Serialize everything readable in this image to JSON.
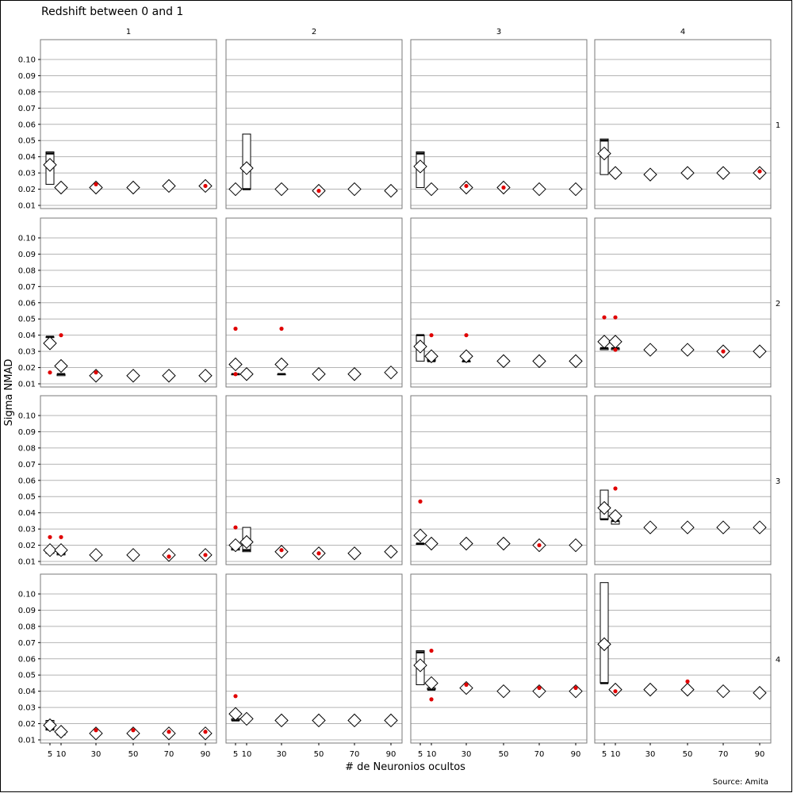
{
  "chart_data": {
    "type": "boxplot",
    "title": "Redshift between 0 and 1",
    "xlabel": "# de Neuronios ocultos",
    "ylabel": "Sigma NMAD",
    "source": "Source: Amita",
    "column_labels": [
      "1",
      "2",
      "3",
      "4"
    ],
    "row_labels": [
      "1",
      "2",
      "3",
      "4"
    ],
    "x_categories": [
      5,
      10,
      30,
      50,
      70,
      90
    ],
    "x_tick_labels": [
      "5",
      "10",
      "30",
      "50",
      "70",
      "90"
    ],
    "ylim": [
      0.005,
      0.11
    ],
    "y_ticks": [
      0.01,
      0.02,
      0.03,
      0.04,
      0.05,
      0.06,
      0.07,
      0.08,
      0.09,
      0.1
    ],
    "y_tick_labels": [
      "0.01",
      "0.02",
      "0.03",
      "0.04",
      "0.05",
      "0.06",
      "0.07",
      "0.08",
      "0.09",
      "0.10"
    ],
    "grid": true,
    "colors": {
      "outlier": "#e00000",
      "mean_marker": "#ffffff",
      "box": "#ffffff",
      "grid": "#b4b4b4"
    },
    "encoding": "each element: [neurons, q1, median, q3, mean, outliers]",
    "panels": [
      {
        "row": "1",
        "col": "1",
        "data": [
          [
            5,
            0.023,
            0.042,
            0.043,
            0.035,
            []
          ],
          [
            10,
            0.021,
            0.021,
            0.021,
            0.021,
            []
          ],
          [
            30,
            0.021,
            0.021,
            0.022,
            0.021,
            [
              0.023
            ]
          ],
          [
            50,
            0.021,
            0.021,
            0.022,
            0.021,
            []
          ],
          [
            70,
            0.021,
            0.022,
            0.022,
            0.022,
            []
          ],
          [
            90,
            0.021,
            0.021,
            0.022,
            0.022,
            [
              0.022
            ]
          ]
        ]
      },
      {
        "row": "1",
        "col": "2",
        "data": [
          [
            5,
            0.02,
            0.02,
            0.02,
            0.02,
            []
          ],
          [
            10,
            0.02,
            0.02,
            0.054,
            0.033,
            []
          ],
          [
            30,
            0.02,
            0.02,
            0.02,
            0.02,
            []
          ],
          [
            50,
            0.019,
            0.019,
            0.02,
            0.019,
            [
              0.019
            ]
          ],
          [
            70,
            0.02,
            0.02,
            0.02,
            0.02,
            []
          ],
          [
            90,
            0.019,
            0.019,
            0.02,
            0.019,
            []
          ]
        ]
      },
      {
        "row": "1",
        "col": "3",
        "data": [
          [
            5,
            0.021,
            0.042,
            0.043,
            0.034,
            []
          ],
          [
            10,
            0.02,
            0.02,
            0.02,
            0.02,
            []
          ],
          [
            30,
            0.021,
            0.021,
            0.021,
            0.021,
            [
              0.022
            ]
          ],
          [
            50,
            0.021,
            0.021,
            0.022,
            0.021,
            [
              0.021
            ]
          ],
          [
            70,
            0.02,
            0.02,
            0.021,
            0.02,
            []
          ],
          [
            90,
            0.02,
            0.02,
            0.021,
            0.02,
            []
          ]
        ]
      },
      {
        "row": "1",
        "col": "4",
        "data": [
          [
            5,
            0.029,
            0.05,
            0.051,
            0.042,
            []
          ],
          [
            10,
            0.029,
            0.029,
            0.03,
            0.03,
            []
          ],
          [
            30,
            0.029,
            0.029,
            0.03,
            0.029,
            []
          ],
          [
            50,
            0.03,
            0.03,
            0.031,
            0.03,
            []
          ],
          [
            70,
            0.03,
            0.03,
            0.031,
            0.03,
            []
          ],
          [
            90,
            0.029,
            0.03,
            0.03,
            0.03,
            [
              0.031
            ]
          ]
        ]
      },
      {
        "row": "2",
        "col": "1",
        "data": [
          [
            5,
            0.039,
            0.039,
            0.039,
            0.035,
            [
              0.017
            ]
          ],
          [
            10,
            0.015,
            0.016,
            0.016,
            0.021,
            [
              0.04
            ]
          ],
          [
            30,
            0.014,
            0.014,
            0.015,
            0.015,
            [
              0.017
            ]
          ],
          [
            50,
            0.014,
            0.014,
            0.015,
            0.015,
            []
          ],
          [
            70,
            0.014,
            0.015,
            0.015,
            0.015,
            []
          ],
          [
            90,
            0.014,
            0.015,
            0.015,
            0.015,
            []
          ]
        ]
      },
      {
        "row": "2",
        "col": "2",
        "data": [
          [
            5,
            0.016,
            0.016,
            0.016,
            0.022,
            [
              0.044,
              0.016
            ]
          ],
          [
            10,
            0.016,
            0.016,
            0.016,
            0.016,
            []
          ],
          [
            30,
            0.016,
            0.016,
            0.016,
            0.022,
            [
              0.044
            ]
          ],
          [
            50,
            0.016,
            0.016,
            0.016,
            0.016,
            []
          ],
          [
            70,
            0.016,
            0.016,
            0.017,
            0.016,
            []
          ],
          [
            90,
            0.016,
            0.016,
            0.017,
            0.017,
            []
          ]
        ]
      },
      {
        "row": "2",
        "col": "3",
        "data": [
          [
            5,
            0.024,
            0.04,
            0.04,
            0.033,
            []
          ],
          [
            10,
            0.024,
            0.024,
            0.025,
            0.027,
            [
              0.04
            ]
          ],
          [
            30,
            0.024,
            0.024,
            0.024,
            0.027,
            [
              0.04
            ]
          ],
          [
            50,
            0.024,
            0.024,
            0.024,
            0.024,
            []
          ],
          [
            70,
            0.023,
            0.023,
            0.024,
            0.024,
            []
          ],
          [
            90,
            0.023,
            0.023,
            0.024,
            0.024,
            []
          ]
        ]
      },
      {
        "row": "2",
        "col": "4",
        "data": [
          [
            5,
            0.031,
            0.032,
            0.032,
            0.036,
            [
              0.051
            ]
          ],
          [
            10,
            0.031,
            0.032,
            0.032,
            0.036,
            [
              0.051,
              0.031
            ]
          ],
          [
            30,
            0.03,
            0.03,
            0.031,
            0.031,
            []
          ],
          [
            50,
            0.03,
            0.03,
            0.031,
            0.031,
            []
          ],
          [
            70,
            0.03,
            0.03,
            0.031,
            0.03,
            [
              0.03
            ]
          ],
          [
            90,
            0.03,
            0.03,
            0.031,
            0.03,
            []
          ]
        ]
      },
      {
        "row": "3",
        "col": "1",
        "data": [
          [
            5,
            0.015,
            0.016,
            0.016,
            0.017,
            [
              0.025
            ]
          ],
          [
            10,
            0.014,
            0.015,
            0.015,
            0.017,
            [
              0.025
            ]
          ],
          [
            30,
            0.013,
            0.014,
            0.014,
            0.014,
            []
          ],
          [
            50,
            0.013,
            0.014,
            0.014,
            0.014,
            []
          ],
          [
            70,
            0.013,
            0.013,
            0.014,
            0.014,
            [
              0.013
            ]
          ],
          [
            90,
            0.013,
            0.013,
            0.014,
            0.014,
            [
              0.014
            ]
          ]
        ]
      },
      {
        "row": "3",
        "col": "2",
        "data": [
          [
            5,
            0.017,
            0.018,
            0.018,
            0.02,
            [
              0.031
            ]
          ],
          [
            10,
            0.016,
            0.017,
            0.031,
            0.022,
            []
          ],
          [
            30,
            0.015,
            0.016,
            0.016,
            0.016,
            [
              0.017
            ]
          ],
          [
            50,
            0.015,
            0.015,
            0.016,
            0.015,
            [
              0.015
            ]
          ],
          [
            70,
            0.014,
            0.015,
            0.015,
            0.015,
            []
          ],
          [
            90,
            0.015,
            0.015,
            0.016,
            0.016,
            []
          ]
        ]
      },
      {
        "row": "3",
        "col": "3",
        "data": [
          [
            5,
            0.021,
            0.021,
            0.021,
            0.026,
            [
              0.047
            ]
          ],
          [
            10,
            0.02,
            0.02,
            0.021,
            0.021,
            []
          ],
          [
            30,
            0.02,
            0.02,
            0.021,
            0.021,
            []
          ],
          [
            50,
            0.02,
            0.02,
            0.021,
            0.021,
            []
          ],
          [
            70,
            0.02,
            0.02,
            0.021,
            0.02,
            [
              0.02
            ]
          ],
          [
            90,
            0.02,
            0.02,
            0.02,
            0.02,
            []
          ]
        ]
      },
      {
        "row": "3",
        "col": "4",
        "data": [
          [
            5,
            0.036,
            0.036,
            0.054,
            0.043,
            []
          ],
          [
            10,
            0.033,
            0.035,
            0.035,
            0.038,
            [
              0.055
            ]
          ],
          [
            30,
            0.031,
            0.031,
            0.032,
            0.031,
            []
          ],
          [
            50,
            0.03,
            0.031,
            0.031,
            0.031,
            []
          ],
          [
            70,
            0.03,
            0.031,
            0.031,
            0.031,
            []
          ],
          [
            90,
            0.03,
            0.031,
            0.031,
            0.031,
            []
          ]
        ]
      },
      {
        "row": "4",
        "col": "1",
        "data": [
          [
            5,
            0.016,
            0.017,
            0.022,
            0.019,
            []
          ],
          [
            10,
            0.013,
            0.014,
            0.014,
            0.015,
            []
          ],
          [
            30,
            0.013,
            0.013,
            0.014,
            0.014,
            [
              0.016
            ]
          ],
          [
            50,
            0.013,
            0.013,
            0.013,
            0.014,
            [
              0.016
            ]
          ],
          [
            70,
            0.013,
            0.013,
            0.014,
            0.014,
            [
              0.015
            ]
          ],
          [
            90,
            0.013,
            0.013,
            0.014,
            0.014,
            [
              0.015
            ]
          ]
        ]
      },
      {
        "row": "4",
        "col": "2",
        "data": [
          [
            5,
            0.022,
            0.022,
            0.023,
            0.026,
            [
              0.037
            ]
          ],
          [
            10,
            0.022,
            0.022,
            0.023,
            0.023,
            []
          ],
          [
            30,
            0.021,
            0.022,
            0.022,
            0.022,
            []
          ],
          [
            50,
            0.021,
            0.021,
            0.022,
            0.022,
            []
          ],
          [
            70,
            0.021,
            0.022,
            0.022,
            0.022,
            []
          ],
          [
            90,
            0.021,
            0.022,
            0.022,
            0.022,
            []
          ]
        ]
      },
      {
        "row": "4",
        "col": "3",
        "data": [
          [
            5,
            0.044,
            0.064,
            0.065,
            0.056,
            []
          ],
          [
            10,
            0.041,
            0.041,
            0.042,
            0.045,
            [
              0.065,
              0.035
            ]
          ],
          [
            30,
            0.041,
            0.041,
            0.042,
            0.042,
            [
              0.044
            ]
          ],
          [
            50,
            0.039,
            0.039,
            0.04,
            0.04,
            []
          ],
          [
            70,
            0.04,
            0.04,
            0.041,
            0.04,
            [
              0.042
            ]
          ],
          [
            90,
            0.04,
            0.04,
            0.041,
            0.04,
            [
              0.042
            ]
          ]
        ]
      },
      {
        "row": "4",
        "col": "4",
        "data": [
          [
            5,
            0.045,
            0.045,
            0.107,
            0.069,
            []
          ],
          [
            10,
            0.04,
            0.04,
            0.041,
            0.041,
            [
              0.04
            ]
          ],
          [
            30,
            0.04,
            0.04,
            0.041,
            0.041,
            []
          ],
          [
            50,
            0.04,
            0.04,
            0.041,
            0.041,
            [
              0.046
            ]
          ],
          [
            70,
            0.039,
            0.04,
            0.041,
            0.04,
            []
          ],
          [
            90,
            0.039,
            0.039,
            0.04,
            0.039,
            []
          ]
        ]
      }
    ]
  }
}
